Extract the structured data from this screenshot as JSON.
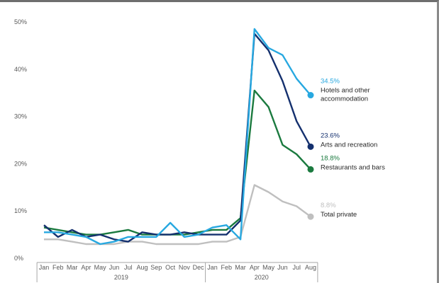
{
  "chart_data": {
    "type": "line",
    "title": "",
    "xlabel": "",
    "ylabel": "",
    "ylim": [
      0,
      50
    ],
    "yticks": [
      "0%",
      "10%",
      "20%",
      "30%",
      "40%",
      "50%"
    ],
    "yticks_values": [
      0,
      10,
      20,
      30,
      40,
      50
    ],
    "categories": [
      "Jan",
      "Feb",
      "Mar",
      "Apr",
      "May",
      "Jun",
      "Jul",
      "Aug",
      "Sep",
      "Oct",
      "Nov",
      "Dec",
      "Jan",
      "Feb",
      "Mar",
      "Apr",
      "May",
      "Jun",
      "Jul",
      "Aug"
    ],
    "year_groups": [
      {
        "label": "2019",
        "start": 0,
        "end": 11
      },
      {
        "label": "2020",
        "start": 12,
        "end": 19
      }
    ],
    "grid": false,
    "legend": "end-of-line labels",
    "series": [
      {
        "name": "Hotels and other accommodation",
        "label_lines": [
          "Hotels and other",
          "accommodation"
        ],
        "end_value_label": "34.5%",
        "color": "#27a8e0",
        "values": [
          5.5,
          5.5,
          5.0,
          4.5,
          3.0,
          3.5,
          4.5,
          4.5,
          4.5,
          7.5,
          4.5,
          5.0,
          6.5,
          7.0,
          4.0,
          48.5,
          44.5,
          43.0,
          38.0,
          34.5
        ]
      },
      {
        "name": "Arts and recreation",
        "label_lines": [
          "Arts and recreation"
        ],
        "end_value_label": "23.6%",
        "color": "#14306e",
        "values": [
          7.0,
          4.5,
          6.0,
          4.5,
          5.0,
          4.0,
          3.5,
          5.5,
          5.0,
          5.0,
          5.5,
          5.0,
          5.0,
          5.0,
          8.0,
          47.5,
          44.0,
          37.5,
          29.0,
          23.6
        ]
      },
      {
        "name": "Restaurants and bars",
        "label_lines": [
          "Restaurants and bars"
        ],
        "end_value_label": "18.8%",
        "color": "#1b7a3f",
        "values": [
          6.5,
          6.0,
          5.5,
          5.0,
          5.0,
          5.5,
          6.0,
          5.0,
          5.0,
          5.0,
          5.0,
          5.5,
          6.0,
          6.0,
          8.5,
          35.5,
          32.0,
          24.0,
          22.0,
          18.8
        ]
      },
      {
        "name": "Total private",
        "label_lines": [
          "Total private"
        ],
        "end_value_label": "8.8%",
        "color": "#bfbfbf",
        "values": [
          4.0,
          4.0,
          3.5,
          3.0,
          3.0,
          3.0,
          3.5,
          3.5,
          3.0,
          3.0,
          3.0,
          3.0,
          3.5,
          3.5,
          4.5,
          15.5,
          14.0,
          12.0,
          11.0,
          8.8
        ]
      }
    ]
  }
}
